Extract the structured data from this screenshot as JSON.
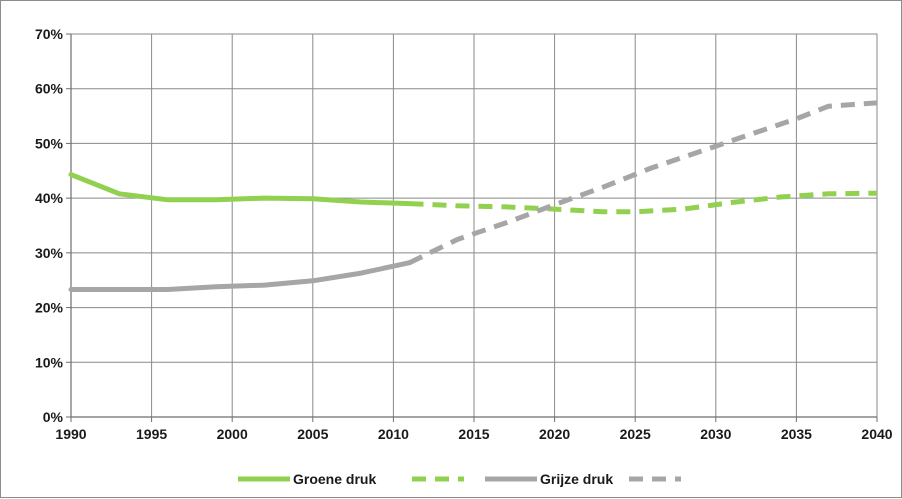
{
  "chart_data": {
    "type": "line",
    "title": "",
    "xlabel": "",
    "ylabel": "",
    "xlim": [
      1990,
      2040
    ],
    "ylim": [
      0,
      70
    ],
    "x_ticks": [
      "1990",
      "1995",
      "2000",
      "2005",
      "2010",
      "2015",
      "2020",
      "2025",
      "2030",
      "2035",
      "2040"
    ],
    "y_ticks": [
      "0%",
      "10%",
      "20%",
      "30%",
      "40%",
      "50%",
      "60%",
      "70%"
    ],
    "grid": true,
    "legend_position": "bottom",
    "series": [
      {
        "name": "Groene druk",
        "color": "#92D050",
        "style": "solid",
        "points": [
          [
            1990,
            44.3
          ],
          [
            1993,
            40.8
          ],
          [
            1996,
            39.7
          ],
          [
            1999,
            39.7
          ],
          [
            2002,
            40.0
          ],
          [
            2005,
            39.9
          ],
          [
            2008,
            39.3
          ],
          [
            2011,
            39.0
          ]
        ]
      },
      {
        "name": "",
        "color": "#92D050",
        "style": "dashed",
        "points": [
          [
            2011,
            39.0
          ],
          [
            2014,
            38.6
          ],
          [
            2017,
            38.4
          ],
          [
            2020,
            38.0
          ],
          [
            2023,
            37.5
          ],
          [
            2025,
            37.5
          ],
          [
            2028,
            38.0
          ],
          [
            2031,
            39.2
          ],
          [
            2034,
            40.2
          ],
          [
            2037,
            40.8
          ],
          [
            2040,
            40.9
          ]
        ]
      },
      {
        "name": "Grijze druk",
        "color": "#A6A6A6",
        "style": "solid",
        "points": [
          [
            1990,
            23.3
          ],
          [
            1993,
            23.3
          ],
          [
            1996,
            23.3
          ],
          [
            1999,
            23.8
          ],
          [
            2002,
            24.1
          ],
          [
            2005,
            24.9
          ],
          [
            2008,
            26.3
          ],
          [
            2011,
            28.2
          ]
        ]
      },
      {
        "name": "",
        "color": "#A6A6A6",
        "style": "dashed",
        "points": [
          [
            2011,
            28.2
          ],
          [
            2014,
            32.5
          ],
          [
            2017,
            35.5
          ],
          [
            2020,
            38.8
          ],
          [
            2023,
            42.0
          ],
          [
            2026,
            45.5
          ],
          [
            2029,
            48.5
          ],
          [
            2032,
            51.5
          ],
          [
            2035,
            54.5
          ],
          [
            2037,
            56.8
          ],
          [
            2040,
            57.4
          ]
        ]
      }
    ]
  }
}
